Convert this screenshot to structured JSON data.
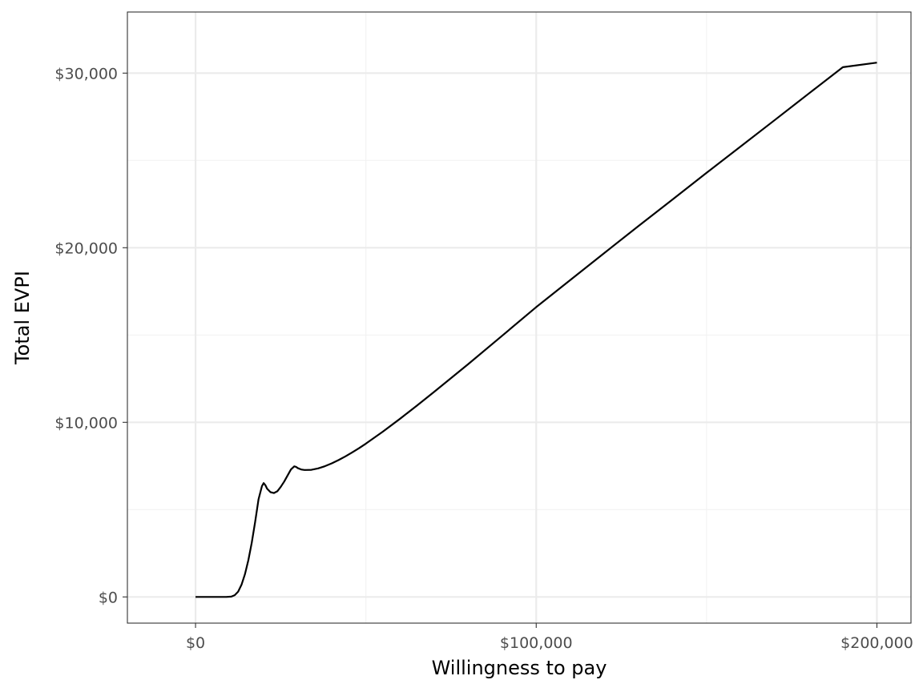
{
  "chart_data": {
    "type": "line",
    "title": "",
    "xlabel": "Willingness to pay",
    "ylabel": "Total EVPI",
    "xlim": [
      -20000,
      210000
    ],
    "ylim": [
      -1500,
      33500
    ],
    "x_major_ticks": [
      0,
      100000,
      200000
    ],
    "x_minor_ticks": [
      50000,
      150000
    ],
    "y_major_ticks": [
      0,
      10000,
      20000,
      30000
    ],
    "y_minor_ticks": [
      5000,
      15000,
      25000
    ],
    "x_tick_labels": [
      "$0",
      "$100,000",
      "$200,000"
    ],
    "y_tick_labels": [
      "$0",
      "$10,000",
      "$20,000",
      "$30,000"
    ],
    "grid": true,
    "legend": "none",
    "colors": {
      "line": "#000000",
      "grid_major": "#ebebeb",
      "grid_minor": "#f2f2f2",
      "panel_border": "#333333",
      "tick_text": "#4d4d4d"
    },
    "series": [
      {
        "x": [
          0,
          5000,
          9000,
          10500,
          11500,
          12500,
          13500,
          14500,
          15500,
          16500,
          17500,
          18500,
          19500,
          20000,
          20500,
          21000,
          22000,
          23000,
          24000,
          25000,
          26000,
          27000,
          28000,
          29000,
          29500,
          30000,
          31000,
          32000,
          34000,
          36000,
          38000,
          40000,
          42000,
          44000,
          46000,
          48000,
          50000,
          55000,
          60000,
          65000,
          70000,
          80000,
          90000,
          100000,
          110000,
          120000,
          130000,
          140000,
          150000,
          160000,
          170000,
          180000,
          190000,
          200000
        ],
        "values": [
          0,
          0,
          0,
          20,
          100,
          300,
          700,
          1300,
          2100,
          3100,
          4300,
          5600,
          6350,
          6520,
          6400,
          6200,
          6000,
          5950,
          6050,
          6300,
          6600,
          6950,
          7300,
          7480,
          7450,
          7380,
          7300,
          7270,
          7280,
          7360,
          7490,
          7650,
          7840,
          8050,
          8280,
          8520,
          8780,
          9470,
          10200,
          10960,
          11740,
          13330,
          14960,
          16600,
          18150,
          19700,
          21240,
          22760,
          24290,
          25800,
          27310,
          28830,
          30340,
          30600
        ]
      }
    ]
  }
}
